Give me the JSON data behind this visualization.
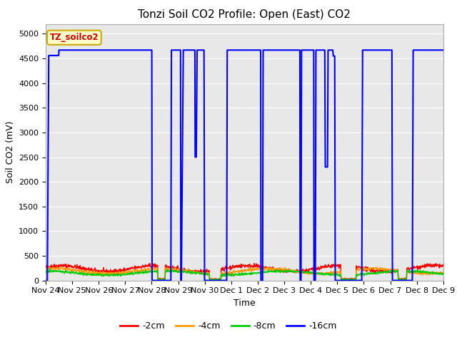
{
  "title": "Tonzi Soil CO2 Profile: Open (East) CO2",
  "ylabel": "Soil CO2 (mV)",
  "xlabel": "Time",
  "ylim": [
    0,
    5200
  ],
  "yticks": [
    0,
    500,
    1000,
    1500,
    2000,
    2500,
    3000,
    3500,
    4000,
    4500,
    5000
  ],
  "plot_bg": "#e8e8e8",
  "fig_bg": "#ffffff",
  "legend_label": "TZ_soilco2",
  "tick_labels": [
    "Nov 24",
    "Nov 25",
    "Nov 26",
    "Nov 27",
    "Nov 28",
    "Nov 29",
    "Nov 30",
    "Dec 1",
    "Dec 2",
    "Dec 3",
    "Dec 4",
    "Dec 5",
    "Dec 6",
    "Dec 7",
    "Dec 8",
    "Dec 9"
  ],
  "gridcolor": "#ffffff",
  "title_fontsize": 11,
  "axis_fontsize": 9,
  "tick_fontsize": 8,
  "color_2cm": "#ff0000",
  "color_4cm": "#ff9900",
  "color_8cm": "#00cc00",
  "color_16cm": "#0000ff",
  "legend_box_fg": "#ffffcc",
  "legend_box_edge": "#ccaa00",
  "legend_text_color": "#cc0000"
}
